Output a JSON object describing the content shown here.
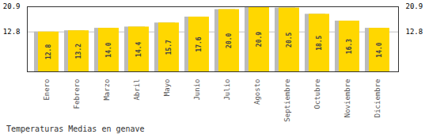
{
  "chart_data": {
    "type": "bar",
    "title": "Temperaturas Medias en genave",
    "categories": [
      "Enero",
      "Febrero",
      "Marzo",
      "Abril",
      "Mayo",
      "Junio",
      "Julio",
      "Agosto",
      "Septiembre",
      "Octubre",
      "Noviembre",
      "Diciembre"
    ],
    "values": [
      12.8,
      13.2,
      14.0,
      14.4,
      15.7,
      17.6,
      20.0,
      20.9,
      20.5,
      18.5,
      16.3,
      14.0
    ],
    "value_labels": [
      "12.8",
      "13.2",
      "14.0",
      "14.4",
      "15.7",
      "17.6",
      "20.0",
      "20.9",
      "20.5",
      "18.5",
      "16.3",
      "14.0"
    ],
    "color": "#FFD700",
    "ylim": [
      0,
      20.9
    ],
    "yticks": [
      12.8,
      20.9
    ],
    "grid": true,
    "data_labels": true
  }
}
